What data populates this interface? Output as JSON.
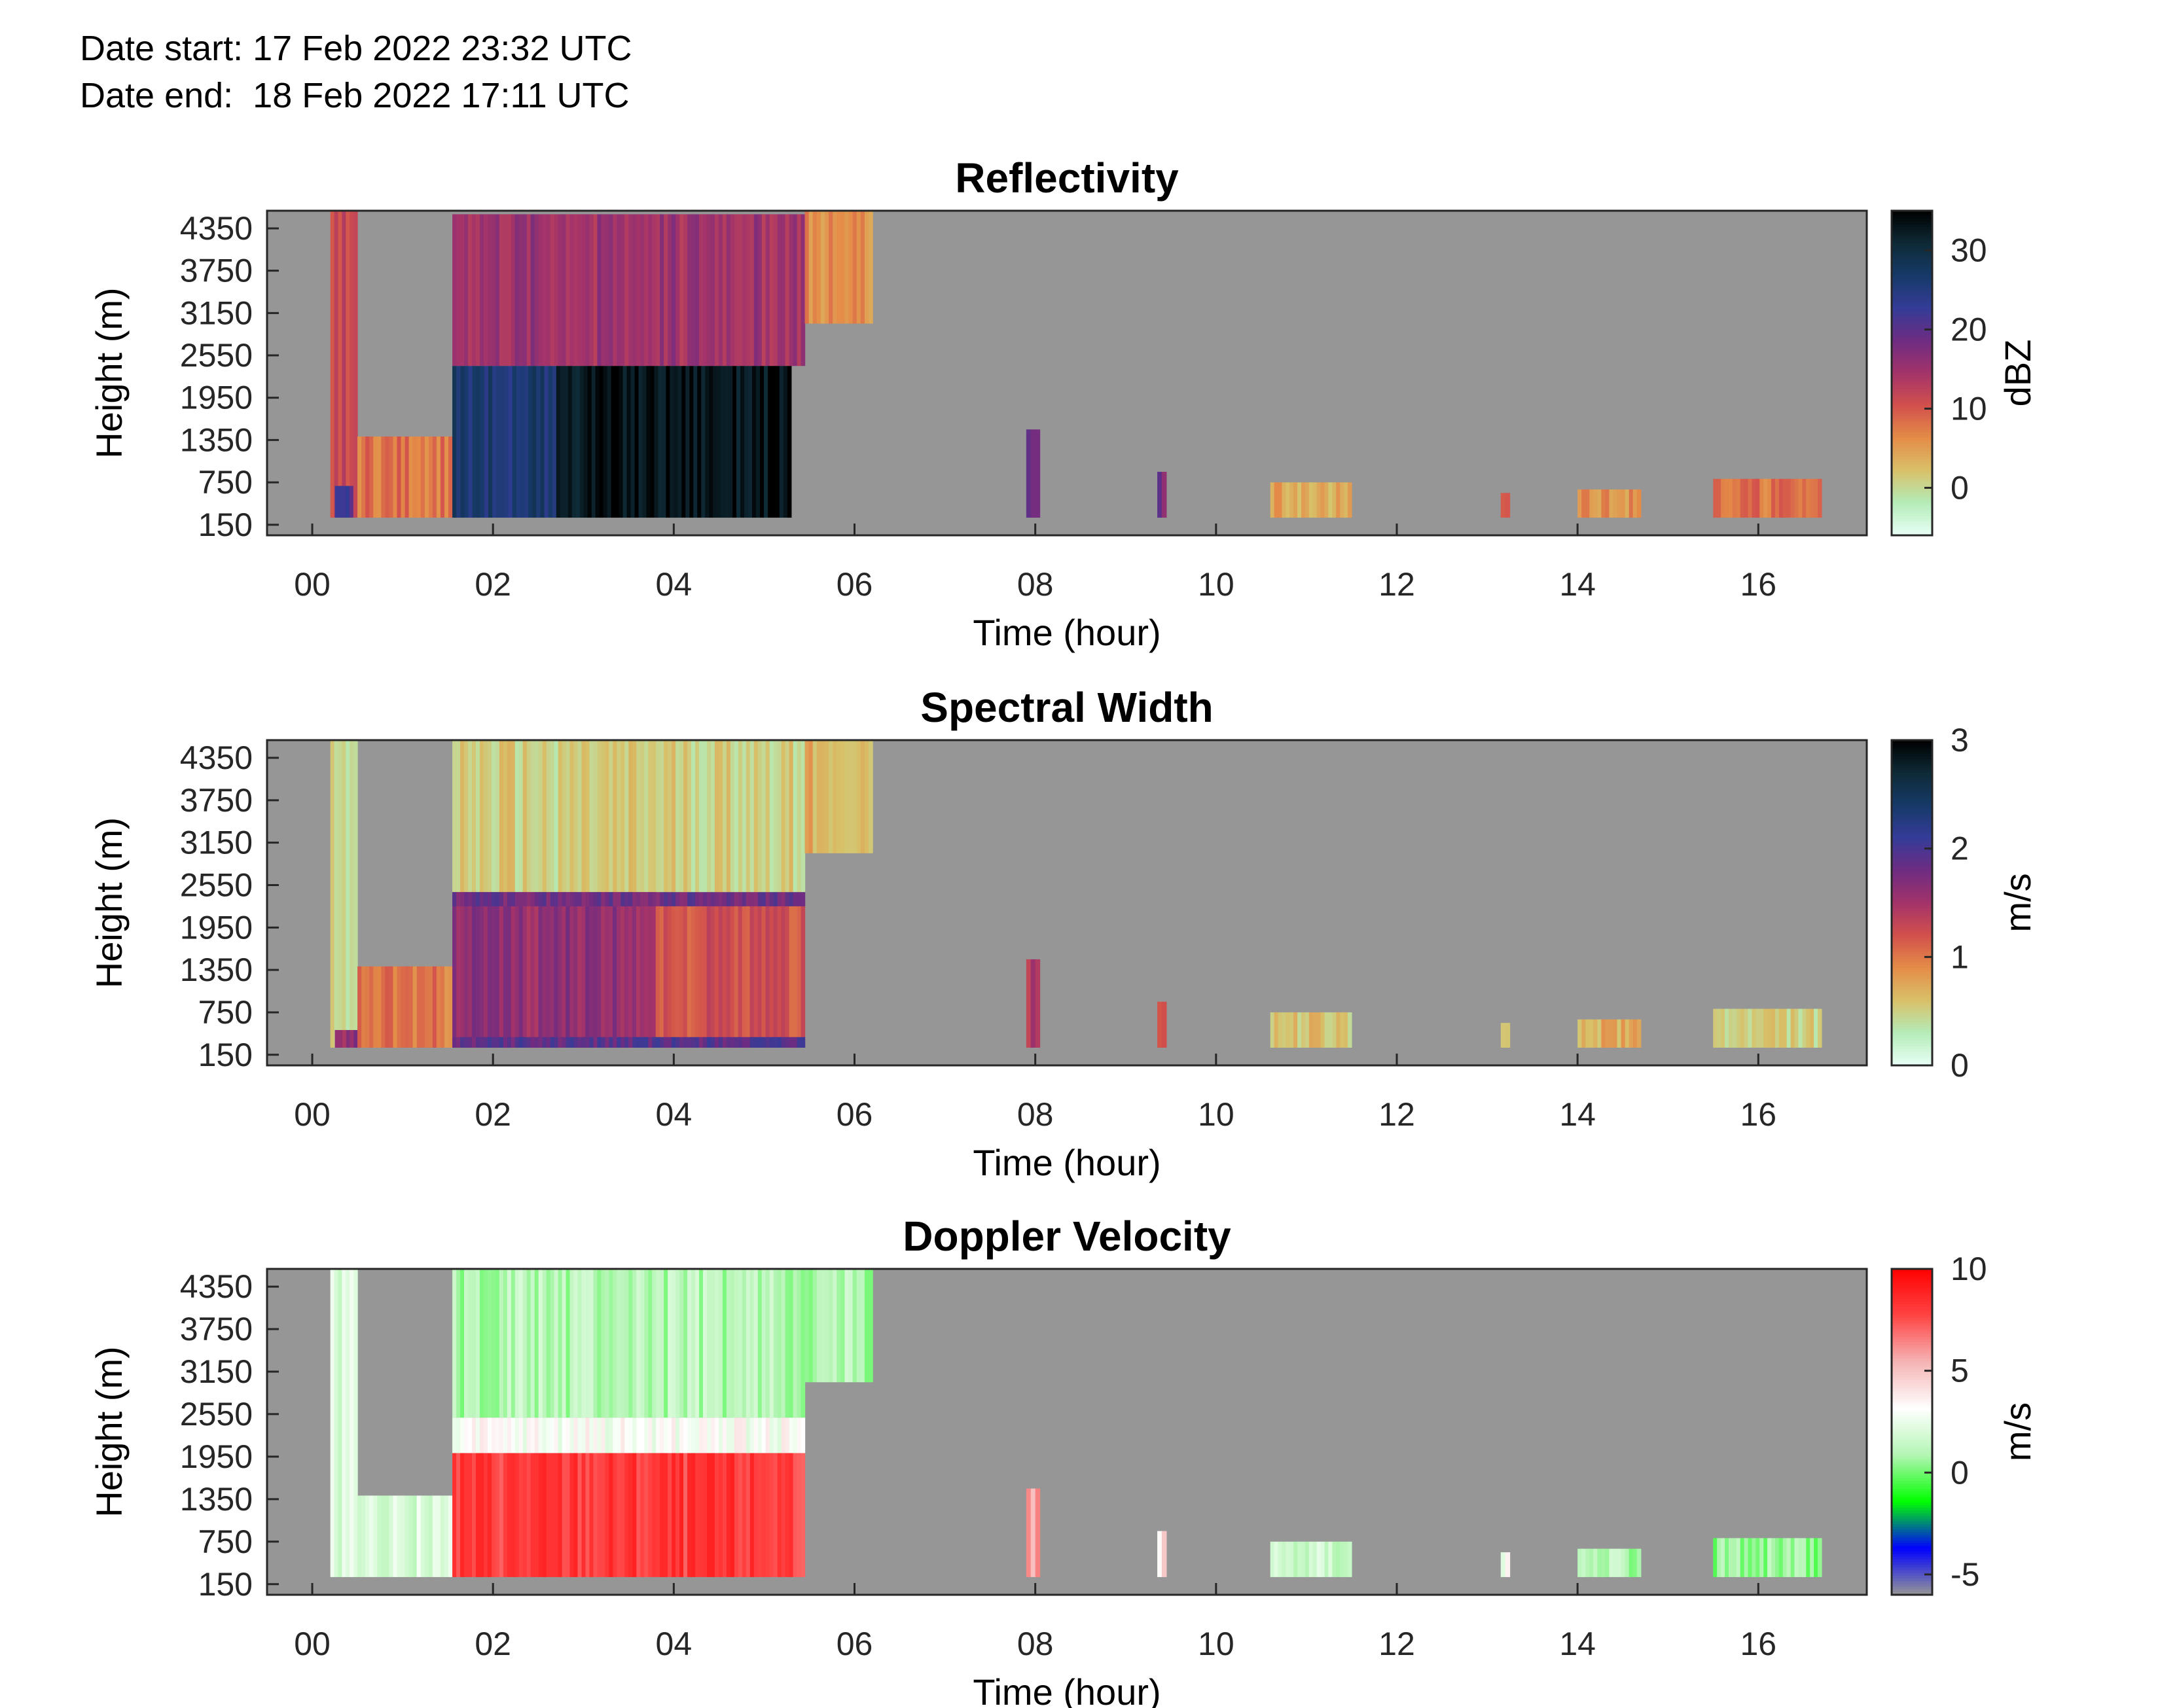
{
  "header": {
    "date_start": "Date start: 17 Feb 2022 23:32 UTC",
    "date_end": "Date end:  18 Feb 2022 17:11 UTC"
  },
  "colors": {
    "no_data": "#969696",
    "axes_frame": "#262626"
  },
  "chart_data": [
    {
      "type": "heatmap",
      "title": "Reflectivity",
      "xlabel": "Time (hour)",
      "ylabel": "Height (m)",
      "colorbar_label": "dBZ",
      "xlim": [
        -0.5,
        17.2
      ],
      "ylim": [
        0,
        4600
      ],
      "x_ticks": [
        "00",
        "02",
        "04",
        "06",
        "08",
        "10",
        "12",
        "14",
        "16"
      ],
      "x_tick_values": [
        0,
        2,
        4,
        6,
        8,
        10,
        12,
        14,
        16
      ],
      "y_ticks": [
        "150",
        "750",
        "1350",
        "1950",
        "2550",
        "3150",
        "3750",
        "4350"
      ],
      "y_tick_values": [
        150,
        750,
        1350,
        1950,
        2550,
        3150,
        3750,
        4350
      ],
      "cbar_range": [
        -6,
        35
      ],
      "cbar_ticks": [
        "0",
        "10",
        "20",
        "30"
      ],
      "cbar_tick_values": [
        0,
        10,
        20,
        30
      ],
      "colormap": [
        "#e8fff6",
        "#b4ecb8",
        "#d8c068",
        "#e48c48",
        "#d2504c",
        "#a3336a",
        "#6e2c82",
        "#343c98",
        "#163a68",
        "#0e2a36",
        "#000000"
      ],
      "regions": [
        {
          "x": [
            0.2,
            0.5
          ],
          "y": [
            250,
            4600
          ],
          "value": 12
        },
        {
          "x": [
            0.25,
            0.45
          ],
          "y": [
            250,
            700
          ],
          "value": 22
        },
        {
          "x": [
            0.5,
            1.55
          ],
          "y": [
            250,
            1400
          ],
          "value": 8
        },
        {
          "x": [
            1.55,
            5.45
          ],
          "y": [
            2400,
            4550
          ],
          "value": 15
        },
        {
          "x": [
            1.55,
            2.7
          ],
          "y": [
            250,
            2400
          ],
          "value": 26
        },
        {
          "x": [
            2.7,
            5.3
          ],
          "y": [
            250,
            2400
          ],
          "value": 33
        },
        {
          "x": [
            5.45,
            6.2
          ],
          "y": [
            3000,
            4600
          ],
          "value": 6
        },
        {
          "x": [
            7.9,
            8.05
          ],
          "y": [
            250,
            1500
          ],
          "value": 20
        },
        {
          "x": [
            9.35,
            9.45
          ],
          "y": [
            250,
            900
          ],
          "value": 18
        },
        {
          "x": [
            10.6,
            11.5
          ],
          "y": [
            250,
            750
          ],
          "value": 4
        },
        {
          "x": [
            13.15,
            13.25
          ],
          "y": [
            250,
            600
          ],
          "value": 8
        },
        {
          "x": [
            14.0,
            14.7
          ],
          "y": [
            250,
            650
          ],
          "value": 6
        },
        {
          "x": [
            15.5,
            16.7
          ],
          "y": [
            250,
            800
          ],
          "value": 8
        }
      ]
    },
    {
      "type": "heatmap",
      "title": "Spectral Width",
      "xlabel": "Time (hour)",
      "ylabel": "Height (m)",
      "colorbar_label": "m/s",
      "xlim": [
        -0.5,
        17.2
      ],
      "ylim": [
        0,
        4600
      ],
      "x_ticks": [
        "00",
        "02",
        "04",
        "06",
        "08",
        "10",
        "12",
        "14",
        "16"
      ],
      "x_tick_values": [
        0,
        2,
        4,
        6,
        8,
        10,
        12,
        14,
        16
      ],
      "y_ticks": [
        "150",
        "750",
        "1350",
        "1950",
        "2550",
        "3150",
        "3750",
        "4350"
      ],
      "y_tick_values": [
        150,
        750,
        1350,
        1950,
        2550,
        3150,
        3750,
        4350
      ],
      "cbar_range": [
        0,
        3
      ],
      "cbar_ticks": [
        "0",
        "1",
        "2",
        "3"
      ],
      "cbar_tick_values": [
        0,
        1,
        2,
        3
      ],
      "colormap": [
        "#e8fff6",
        "#b4ecb8",
        "#d8c068",
        "#e48c48",
        "#d2504c",
        "#a3336a",
        "#6e2c82",
        "#343c98",
        "#163a68",
        "#0e2a36",
        "#000000"
      ],
      "regions": [
        {
          "x": [
            0.2,
            0.5
          ],
          "y": [
            250,
            4600
          ],
          "value": 0.4
        },
        {
          "x": [
            0.25,
            0.5
          ],
          "y": [
            250,
            500
          ],
          "value": 1.6
        },
        {
          "x": [
            0.5,
            1.55
          ],
          "y": [
            250,
            1400
          ],
          "value": 1.0
        },
        {
          "x": [
            1.55,
            5.45
          ],
          "y": [
            2450,
            4600
          ],
          "value": 0.5
        },
        {
          "x": [
            1.55,
            3.8
          ],
          "y": [
            250,
            2450
          ],
          "value": 1.6
        },
        {
          "x": [
            3.8,
            5.45
          ],
          "y": [
            250,
            2300
          ],
          "value": 1.2
        },
        {
          "x": [
            1.55,
            5.45
          ],
          "y": [
            2250,
            2450
          ],
          "value": 1.8
        },
        {
          "x": [
            1.55,
            5.45
          ],
          "y": [
            250,
            400
          ],
          "value": 1.9
        },
        {
          "x": [
            5.45,
            6.2
          ],
          "y": [
            3000,
            4600
          ],
          "value": 0.7
        },
        {
          "x": [
            7.9,
            8.05
          ],
          "y": [
            250,
            1500
          ],
          "value": 1.4
        },
        {
          "x": [
            9.35,
            9.45
          ],
          "y": [
            250,
            900
          ],
          "value": 1.1
        },
        {
          "x": [
            10.6,
            11.5
          ],
          "y": [
            250,
            750
          ],
          "value": 0.6
        },
        {
          "x": [
            13.15,
            13.25
          ],
          "y": [
            250,
            600
          ],
          "value": 0.5
        },
        {
          "x": [
            14.0,
            14.7
          ],
          "y": [
            250,
            650
          ],
          "value": 0.7
        },
        {
          "x": [
            15.5,
            16.7
          ],
          "y": [
            250,
            800
          ],
          "value": 0.5
        }
      ]
    },
    {
      "type": "heatmap",
      "title": "Doppler Velocity",
      "xlabel": "Time (hour)",
      "ylabel": "Height (m)",
      "colorbar_label": "m/s",
      "xlim": [
        -0.5,
        17.2
      ],
      "ylim": [
        0,
        4600
      ],
      "x_ticks": [
        "00",
        "02",
        "04",
        "06",
        "08",
        "10",
        "12",
        "14",
        "16"
      ],
      "x_tick_values": [
        0,
        2,
        4,
        6,
        8,
        10,
        12,
        14,
        16
      ],
      "y_ticks": [
        "150",
        "750",
        "1350",
        "1950",
        "2550",
        "3150",
        "3750",
        "4350"
      ],
      "y_tick_values": [
        150,
        750,
        1350,
        1950,
        2550,
        3150,
        3750,
        4350
      ],
      "cbar_range": [
        -6,
        10
      ],
      "cbar_ticks": [
        "-5",
        "0",
        "5",
        "10"
      ],
      "cbar_tick_values": [
        -5,
        0,
        5,
        10
      ],
      "colormap": [
        "#969696",
        "#0000ff",
        "#00ff00",
        "#b4f5b4",
        "#ffffff",
        "#f5b4b4",
        "#ff4444",
        "#ff0000"
      ],
      "regions": [
        {
          "x": [
            0.2,
            0.5
          ],
          "y": [
            250,
            4600
          ],
          "value": 2
        },
        {
          "x": [
            0.5,
            1.55
          ],
          "y": [
            250,
            1400
          ],
          "value": 2
        },
        {
          "x": [
            1.55,
            5.45
          ],
          "y": [
            2500,
            4600
          ],
          "value": 1
        },
        {
          "x": [
            1.55,
            5.45
          ],
          "y": [
            2000,
            2500
          ],
          "value": 3
        },
        {
          "x": [
            1.55,
            5.45
          ],
          "y": [
            250,
            2000
          ],
          "value": 8
        },
        {
          "x": [
            5.45,
            6.2
          ],
          "y": [
            3000,
            4600
          ],
          "value": 1
        },
        {
          "x": [
            7.9,
            8.05
          ],
          "y": [
            250,
            1500
          ],
          "value": 6
        },
        {
          "x": [
            9.35,
            9.45
          ],
          "y": [
            250,
            900
          ],
          "value": 4
        },
        {
          "x": [
            10.6,
            11.5
          ],
          "y": [
            250,
            750
          ],
          "value": 1.5
        },
        {
          "x": [
            13.15,
            13.25
          ],
          "y": [
            250,
            600
          ],
          "value": 3
        },
        {
          "x": [
            14.0,
            14.7
          ],
          "y": [
            250,
            650
          ],
          "value": 1
        },
        {
          "x": [
            15.5,
            16.7
          ],
          "y": [
            250,
            800
          ],
          "value": 0.5
        }
      ]
    }
  ]
}
